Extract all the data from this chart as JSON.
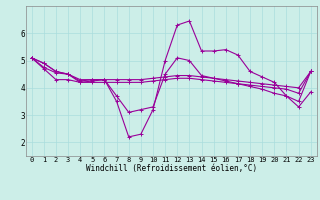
{
  "title": "",
  "xlabel": "Windchill (Refroidissement éolien,°C)",
  "ylabel": "",
  "bg_color": "#cceee8",
  "line_color": "#990099",
  "grid_color": "#aadddd",
  "xlim": [
    -0.5,
    23.5
  ],
  "ylim": [
    1.5,
    7.0
  ],
  "yticks": [
    2,
    3,
    4,
    5,
    6
  ],
  "xticks": [
    0,
    1,
    2,
    3,
    4,
    5,
    6,
    7,
    8,
    9,
    10,
    11,
    12,
    13,
    14,
    15,
    16,
    17,
    18,
    19,
    20,
    21,
    22,
    23
  ],
  "lines": [
    [
      5.1,
      4.9,
      4.6,
      4.5,
      4.2,
      4.25,
      4.3,
      3.5,
      2.2,
      2.3,
      3.2,
      5.0,
      6.3,
      6.45,
      5.35,
      5.35,
      5.4,
      5.2,
      4.6,
      4.4,
      4.2,
      3.7,
      3.5,
      4.6
    ],
    [
      5.1,
      4.9,
      4.6,
      4.5,
      4.3,
      4.3,
      4.3,
      4.3,
      4.3,
      4.3,
      4.35,
      4.4,
      4.45,
      4.45,
      4.4,
      4.35,
      4.3,
      4.25,
      4.2,
      4.15,
      4.1,
      4.05,
      4.0,
      4.6
    ],
    [
      5.1,
      4.7,
      4.3,
      4.3,
      4.2,
      4.2,
      4.2,
      4.2,
      4.2,
      4.2,
      4.25,
      4.3,
      4.35,
      4.35,
      4.3,
      4.25,
      4.2,
      4.15,
      4.1,
      4.05,
      4.0,
      3.95,
      3.8,
      4.6
    ],
    [
      5.1,
      4.75,
      4.55,
      4.5,
      4.25,
      4.3,
      4.3,
      3.7,
      3.1,
      3.2,
      3.3,
      4.5,
      5.1,
      5.0,
      4.45,
      4.35,
      4.25,
      4.15,
      4.05,
      3.95,
      3.8,
      3.7,
      3.3,
      3.85
    ]
  ],
  "tick_fontsize": 5.0,
  "xlabel_fontsize": 5.5
}
